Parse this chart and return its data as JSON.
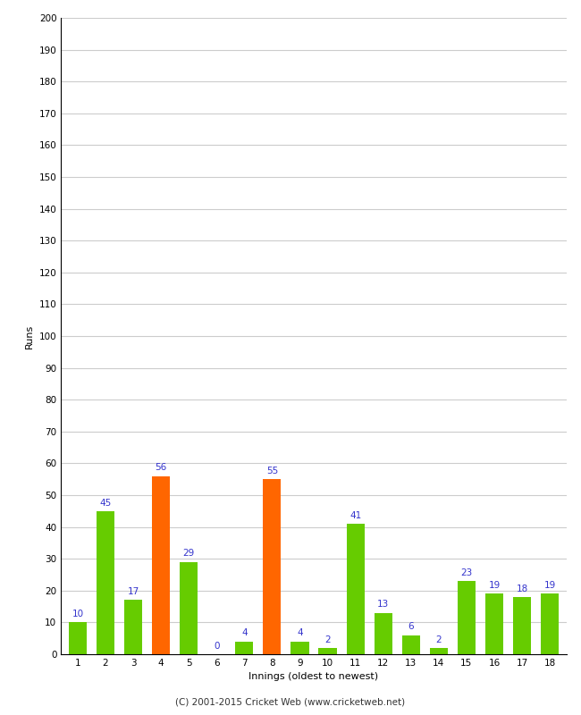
{
  "innings": [
    1,
    2,
    3,
    4,
    5,
    6,
    7,
    8,
    9,
    10,
    11,
    12,
    13,
    14,
    15,
    16,
    17,
    18
  ],
  "runs": [
    10,
    45,
    17,
    56,
    29,
    0,
    4,
    55,
    4,
    2,
    41,
    13,
    6,
    2,
    23,
    19,
    18,
    19
  ],
  "colors": [
    "#66cc00",
    "#66cc00",
    "#66cc00",
    "#ff6600",
    "#66cc00",
    "#66cc00",
    "#66cc00",
    "#ff6600",
    "#66cc00",
    "#66cc00",
    "#66cc00",
    "#66cc00",
    "#66cc00",
    "#66cc00",
    "#66cc00",
    "#66cc00",
    "#66cc00",
    "#66cc00"
  ],
  "xlabel": "Innings (oldest to newest)",
  "ylabel": "Runs",
  "ylim": [
    0,
    200
  ],
  "yticks": [
    0,
    10,
    20,
    30,
    40,
    50,
    60,
    70,
    80,
    90,
    100,
    110,
    120,
    130,
    140,
    150,
    160,
    170,
    180,
    190,
    200
  ],
  "label_color": "#3333cc",
  "label_fontsize": 7.5,
  "axis_label_fontsize": 8,
  "tick_fontsize": 7.5,
  "footer": "(C) 2001-2015 Cricket Web (www.cricketweb.net)",
  "footer_fontsize": 7.5,
  "background_color": "#ffffff",
  "grid_color": "#cccccc",
  "bar_width": 0.65,
  "spine_color": "#000000"
}
